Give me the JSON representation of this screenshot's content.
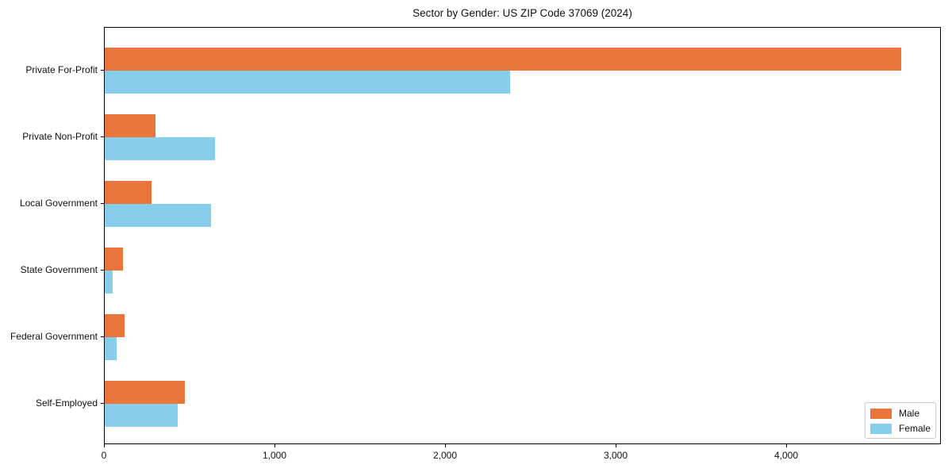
{
  "chart_data": {
    "type": "bar",
    "orientation": "horizontal",
    "title": "Sector by Gender: US ZIP Code 37069 (2024)",
    "categories": [
      "Private For-Profit",
      "Private Non-Profit",
      "Local Government",
      "State Government",
      "Federal Government",
      "Self-Employed"
    ],
    "series": [
      {
        "name": "Male",
        "color": "#e8763c",
        "values": [
          4670,
          298,
          274,
          107,
          116,
          470
        ]
      },
      {
        "name": "Female",
        "color": "#87ceeb",
        "values": [
          2375,
          647,
          622,
          46,
          70,
          428
        ]
      }
    ],
    "xlabel": "",
    "ylabel": "",
    "xlim": [
      0,
      4907
    ],
    "x_ticks": [
      {
        "value": 0,
        "label": "0"
      },
      {
        "value": 1000,
        "label": "1,000"
      },
      {
        "value": 2000,
        "label": "2,000"
      },
      {
        "value": 3000,
        "label": "3,000"
      },
      {
        "value": 4000,
        "label": "4,000"
      }
    ],
    "grid": false,
    "legend": {
      "position": "lower right",
      "entries": [
        {
          "label": "Male",
          "color": "#e8763c"
        },
        {
          "label": "Female",
          "color": "#87ceeb"
        }
      ]
    }
  }
}
